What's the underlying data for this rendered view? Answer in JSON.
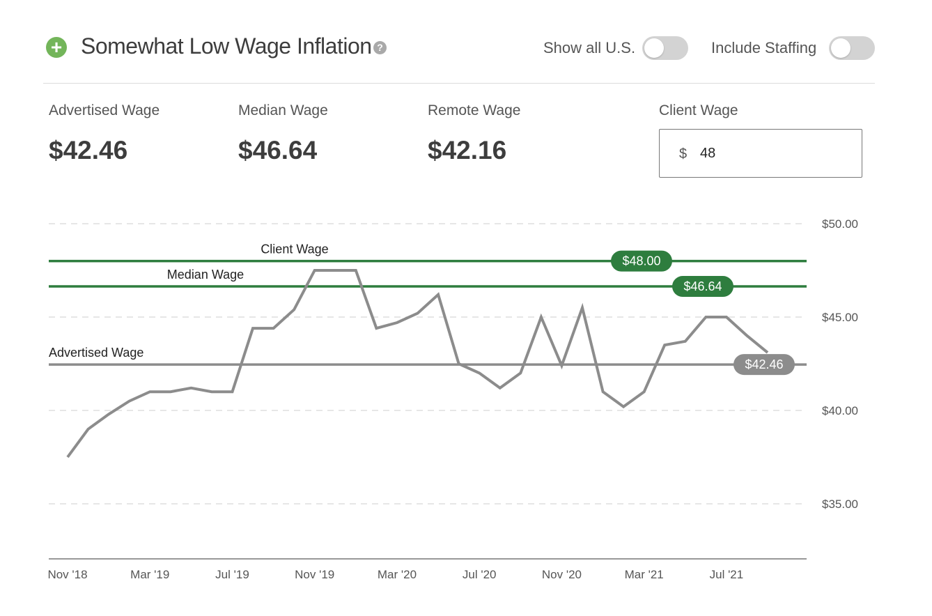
{
  "header": {
    "title": "Somewhat Low Wage Inflation",
    "toggles": [
      {
        "label": "Show all U.S.",
        "on": false
      },
      {
        "label": "Include Staffing",
        "on": false
      }
    ]
  },
  "stats": [
    {
      "label": "Advertised Wage",
      "value": "$42.46"
    },
    {
      "label": "Median Wage",
      "value": "$46.64"
    },
    {
      "label": "Remote Wage",
      "value": "$42.16"
    }
  ],
  "client": {
    "label": "Client Wage",
    "currency": "$",
    "value": "48"
  },
  "colors": {
    "accent_green": "#2e7d3e",
    "icon_green": "#73b55a",
    "series_gray": "#8c8c8c"
  },
  "chart_data": {
    "type": "line",
    "ylim": [
      32,
      50
    ],
    "y_ticks": [
      {
        "value": 50,
        "label": "$50.00"
      },
      {
        "value": 45,
        "label": "$45.00"
      },
      {
        "value": 40,
        "label": "$40.00"
      },
      {
        "value": 35,
        "label": "$35.00"
      }
    ],
    "x_ticks": [
      {
        "index": 0,
        "label": "Nov '18"
      },
      {
        "index": 4,
        "label": "Mar '19"
      },
      {
        "index": 8,
        "label": "Jul '19"
      },
      {
        "index": 12,
        "label": "Nov '19"
      },
      {
        "index": 16,
        "label": "Mar '20"
      },
      {
        "index": 20,
        "label": "Jul '20"
      },
      {
        "index": 24,
        "label": "Nov '20"
      },
      {
        "index": 28,
        "label": "Mar '21"
      },
      {
        "index": 32,
        "label": "Jul '21"
      }
    ],
    "x": [
      "Nov '18",
      "Dec '18",
      "Jan '19",
      "Feb '19",
      "Mar '19",
      "Apr '19",
      "May '19",
      "Jun '19",
      "Jul '19",
      "Aug '19",
      "Sep '19",
      "Oct '19",
      "Nov '19",
      "Dec '19",
      "Jan '20",
      "Feb '20",
      "Mar '20",
      "Apr '20",
      "May '20",
      "Jun '20",
      "Jul '20",
      "Aug '20",
      "Sep '20",
      "Oct '20",
      "Nov '20",
      "Dec '20",
      "Jan '21",
      "Feb '21",
      "Mar '21",
      "Apr '21",
      "May '21",
      "Jun '21",
      "Jul '21",
      "Aug '21",
      "Sep '21"
    ],
    "series": [
      {
        "values": [
          37.5,
          39.0,
          39.8,
          40.5,
          41.0,
          41.0,
          41.2,
          41.0,
          41.0,
          44.4,
          44.4,
          45.4,
          47.5,
          47.5,
          47.5,
          44.4,
          44.7,
          45.2,
          46.2,
          42.5,
          42.0,
          41.2,
          42.0,
          45.0,
          42.4,
          45.5,
          41.0,
          40.2,
          41.0,
          43.5,
          43.7,
          45.0,
          45.0,
          44.0,
          43.1
        ]
      }
    ],
    "reference_lines": [
      {
        "name": "Client Wage",
        "value": 48.0,
        "badge": "$48.00",
        "color": "#2e7d3e"
      },
      {
        "name": "Median Wage",
        "value": 46.64,
        "badge": "$46.64",
        "color": "#2e7d3e"
      },
      {
        "name": "Advertised Wage",
        "value": 42.46,
        "badge": "$42.46",
        "color": "#8c8c8c"
      }
    ],
    "grid": true
  }
}
